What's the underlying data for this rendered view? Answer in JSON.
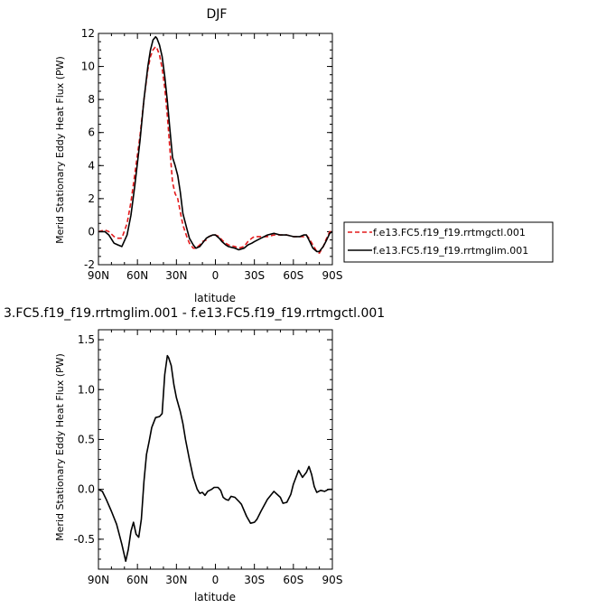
{
  "chart_data": [
    {
      "type": "line",
      "title": "DJF",
      "xlabel": "latitude",
      "ylabel": "Merid Stationary Eddy Heat Flux (PW)",
      "xlim": [
        90,
        -90
      ],
      "ylim": [
        -2,
        12
      ],
      "x_ticks": [
        90,
        60,
        30,
        0,
        -30,
        -60,
        -90
      ],
      "x_tick_labels": [
        "90N",
        "60N",
        "30N",
        "0",
        "30S",
        "60S",
        "90S"
      ],
      "y_ticks": [
        -2,
        0,
        2,
        4,
        6,
        8,
        10,
        12
      ],
      "y_tick_labels": [
        "-2",
        "0",
        "2",
        "4",
        "6",
        "8",
        "10",
        "12"
      ],
      "legend_position": "right",
      "series": [
        {
          "name": "f.e13.FC5.f19_f19.rrtmgctl.001",
          "color": "#e41a1c",
          "dash": "dashed",
          "x": [
            90,
            85,
            82,
            78,
            75,
            72,
            68,
            65,
            62,
            58,
            55,
            52,
            50,
            48,
            46,
            45,
            43,
            41,
            39,
            37,
            35,
            33,
            31,
            29,
            27,
            25,
            22,
            20,
            17,
            15,
            12,
            10,
            7,
            5,
            2,
            0,
            -3,
            -5,
            -8,
            -10,
            -15,
            -18,
            -22,
            -25,
            -28,
            -30,
            -35,
            -40,
            -45,
            -50,
            -55,
            -60,
            -65,
            -68,
            -70,
            -72,
            -75,
            -78,
            -80,
            -83,
            -85,
            -88,
            -90
          ],
          "y": [
            0.0,
            0.1,
            0.0,
            -0.3,
            -0.4,
            -0.4,
            0.5,
            1.8,
            3.5,
            5.8,
            8.0,
            9.8,
            10.6,
            11.0,
            11.2,
            11.1,
            10.7,
            9.9,
            8.7,
            7.0,
            5.0,
            3.0,
            2.3,
            2.0,
            1.2,
            0.4,
            -0.3,
            -0.7,
            -1.0,
            -1.0,
            -0.8,
            -0.6,
            -0.5,
            -0.3,
            -0.2,
            -0.2,
            -0.3,
            -0.5,
            -0.7,
            -0.8,
            -0.9,
            -1.0,
            -0.9,
            -0.6,
            -0.4,
            -0.3,
            -0.3,
            -0.3,
            -0.2,
            -0.2,
            -0.2,
            -0.3,
            -0.3,
            -0.3,
            -0.2,
            -0.4,
            -0.8,
            -1.2,
            -1.3,
            -0.9,
            -0.5,
            0.0,
            0.0
          ]
        },
        {
          "name": "f.e13.FC5.f19_f19.rrtmglim.001",
          "color": "#000000",
          "dash": "solid",
          "x": [
            90,
            85,
            82,
            78,
            75,
            72,
            68,
            65,
            62,
            58,
            55,
            52,
            50,
            48,
            46,
            45,
            43,
            41,
            39,
            37,
            35,
            33,
            31,
            29,
            27,
            25,
            22,
            20,
            17,
            15,
            12,
            10,
            7,
            5,
            2,
            0,
            -3,
            -5,
            -8,
            -10,
            -15,
            -18,
            -22,
            -25,
            -28,
            -30,
            -35,
            -40,
            -45,
            -50,
            -55,
            -60,
            -65,
            -68,
            -70,
            -72,
            -75,
            -78,
            -80,
            -83,
            -85,
            -88,
            -90
          ],
          "y": [
            0.0,
            0.0,
            -0.2,
            -0.7,
            -0.8,
            -0.9,
            -0.2,
            1.0,
            2.8,
            5.5,
            8.0,
            10.0,
            11.0,
            11.6,
            11.8,
            11.7,
            11.3,
            10.6,
            9.4,
            7.9,
            6.2,
            4.5,
            4.0,
            3.4,
            2.4,
            1.1,
            0.2,
            -0.4,
            -0.8,
            -1.0,
            -0.9,
            -0.7,
            -0.4,
            -0.3,
            -0.2,
            -0.2,
            -0.4,
            -0.6,
            -0.8,
            -0.9,
            -1.0,
            -1.1,
            -1.0,
            -0.8,
            -0.7,
            -0.6,
            -0.4,
            -0.2,
            -0.1,
            -0.2,
            -0.2,
            -0.3,
            -0.3,
            -0.2,
            -0.2,
            -0.5,
            -1.0,
            -1.2,
            -1.2,
            -0.9,
            -0.6,
            -0.1,
            0.0
          ]
        }
      ]
    },
    {
      "type": "line",
      "title": "3.FC5.f19_f19.rrtmglim.001 - f.e13.FC5.f19_f19.rrtmgctl.001",
      "xlabel": "latitude",
      "ylabel": "Merid Stationary Eddy Heat Flux (PW)",
      "xlim": [
        90,
        -90
      ],
      "ylim": [
        -0.8,
        1.6
      ],
      "x_ticks": [
        90,
        60,
        30,
        0,
        -30,
        -60,
        -90
      ],
      "x_tick_labels": [
        "90N",
        "60N",
        "30N",
        "0",
        "30S",
        "60S",
        "90S"
      ],
      "y_ticks": [
        -0.5,
        0.0,
        0.5,
        1.0,
        1.5
      ],
      "y_tick_labels": [
        "-0.5",
        "0.0",
        "0.5",
        "1.0",
        "1.5"
      ],
      "series": [
        {
          "color": "#000000",
          "dash": "solid",
          "x": [
            90,
            87,
            84,
            80,
            76,
            72,
            69,
            67,
            65,
            63,
            61,
            59,
            57,
            55,
            53,
            51,
            49,
            46,
            43,
            41,
            39,
            37,
            36,
            34,
            32,
            30,
            27,
            25,
            23,
            20,
            17,
            14,
            12,
            10,
            8,
            6,
            3,
            1,
            -2,
            -4,
            -6,
            -8,
            -10,
            -12,
            -15,
            -18,
            -20,
            -24,
            -27,
            -30,
            -32,
            -35,
            -40,
            -45,
            -50,
            -52,
            -55,
            -58,
            -60,
            -64,
            -67,
            -70,
            -72,
            -74,
            -76,
            -78,
            -81,
            -84,
            -87,
            -90
          ],
          "y": [
            0.0,
            -0.02,
            -0.1,
            -0.22,
            -0.35,
            -0.55,
            -0.72,
            -0.6,
            -0.42,
            -0.33,
            -0.45,
            -0.48,
            -0.3,
            0.08,
            0.35,
            0.48,
            0.62,
            0.72,
            0.73,
            0.76,
            1.15,
            1.34,
            1.32,
            1.24,
            1.05,
            0.92,
            0.78,
            0.66,
            0.5,
            0.3,
            0.12,
            0.0,
            -0.04,
            -0.03,
            -0.06,
            -0.02,
            0.0,
            0.02,
            0.02,
            -0.01,
            -0.08,
            -0.1,
            -0.11,
            -0.07,
            -0.08,
            -0.12,
            -0.15,
            -0.27,
            -0.34,
            -0.33,
            -0.3,
            -0.22,
            -0.1,
            -0.02,
            -0.08,
            -0.14,
            -0.13,
            -0.05,
            0.05,
            0.19,
            0.12,
            0.17,
            0.23,
            0.15,
            0.03,
            -0.03,
            -0.01,
            -0.02,
            0.0,
            0.0
          ]
        }
      ]
    }
  ]
}
